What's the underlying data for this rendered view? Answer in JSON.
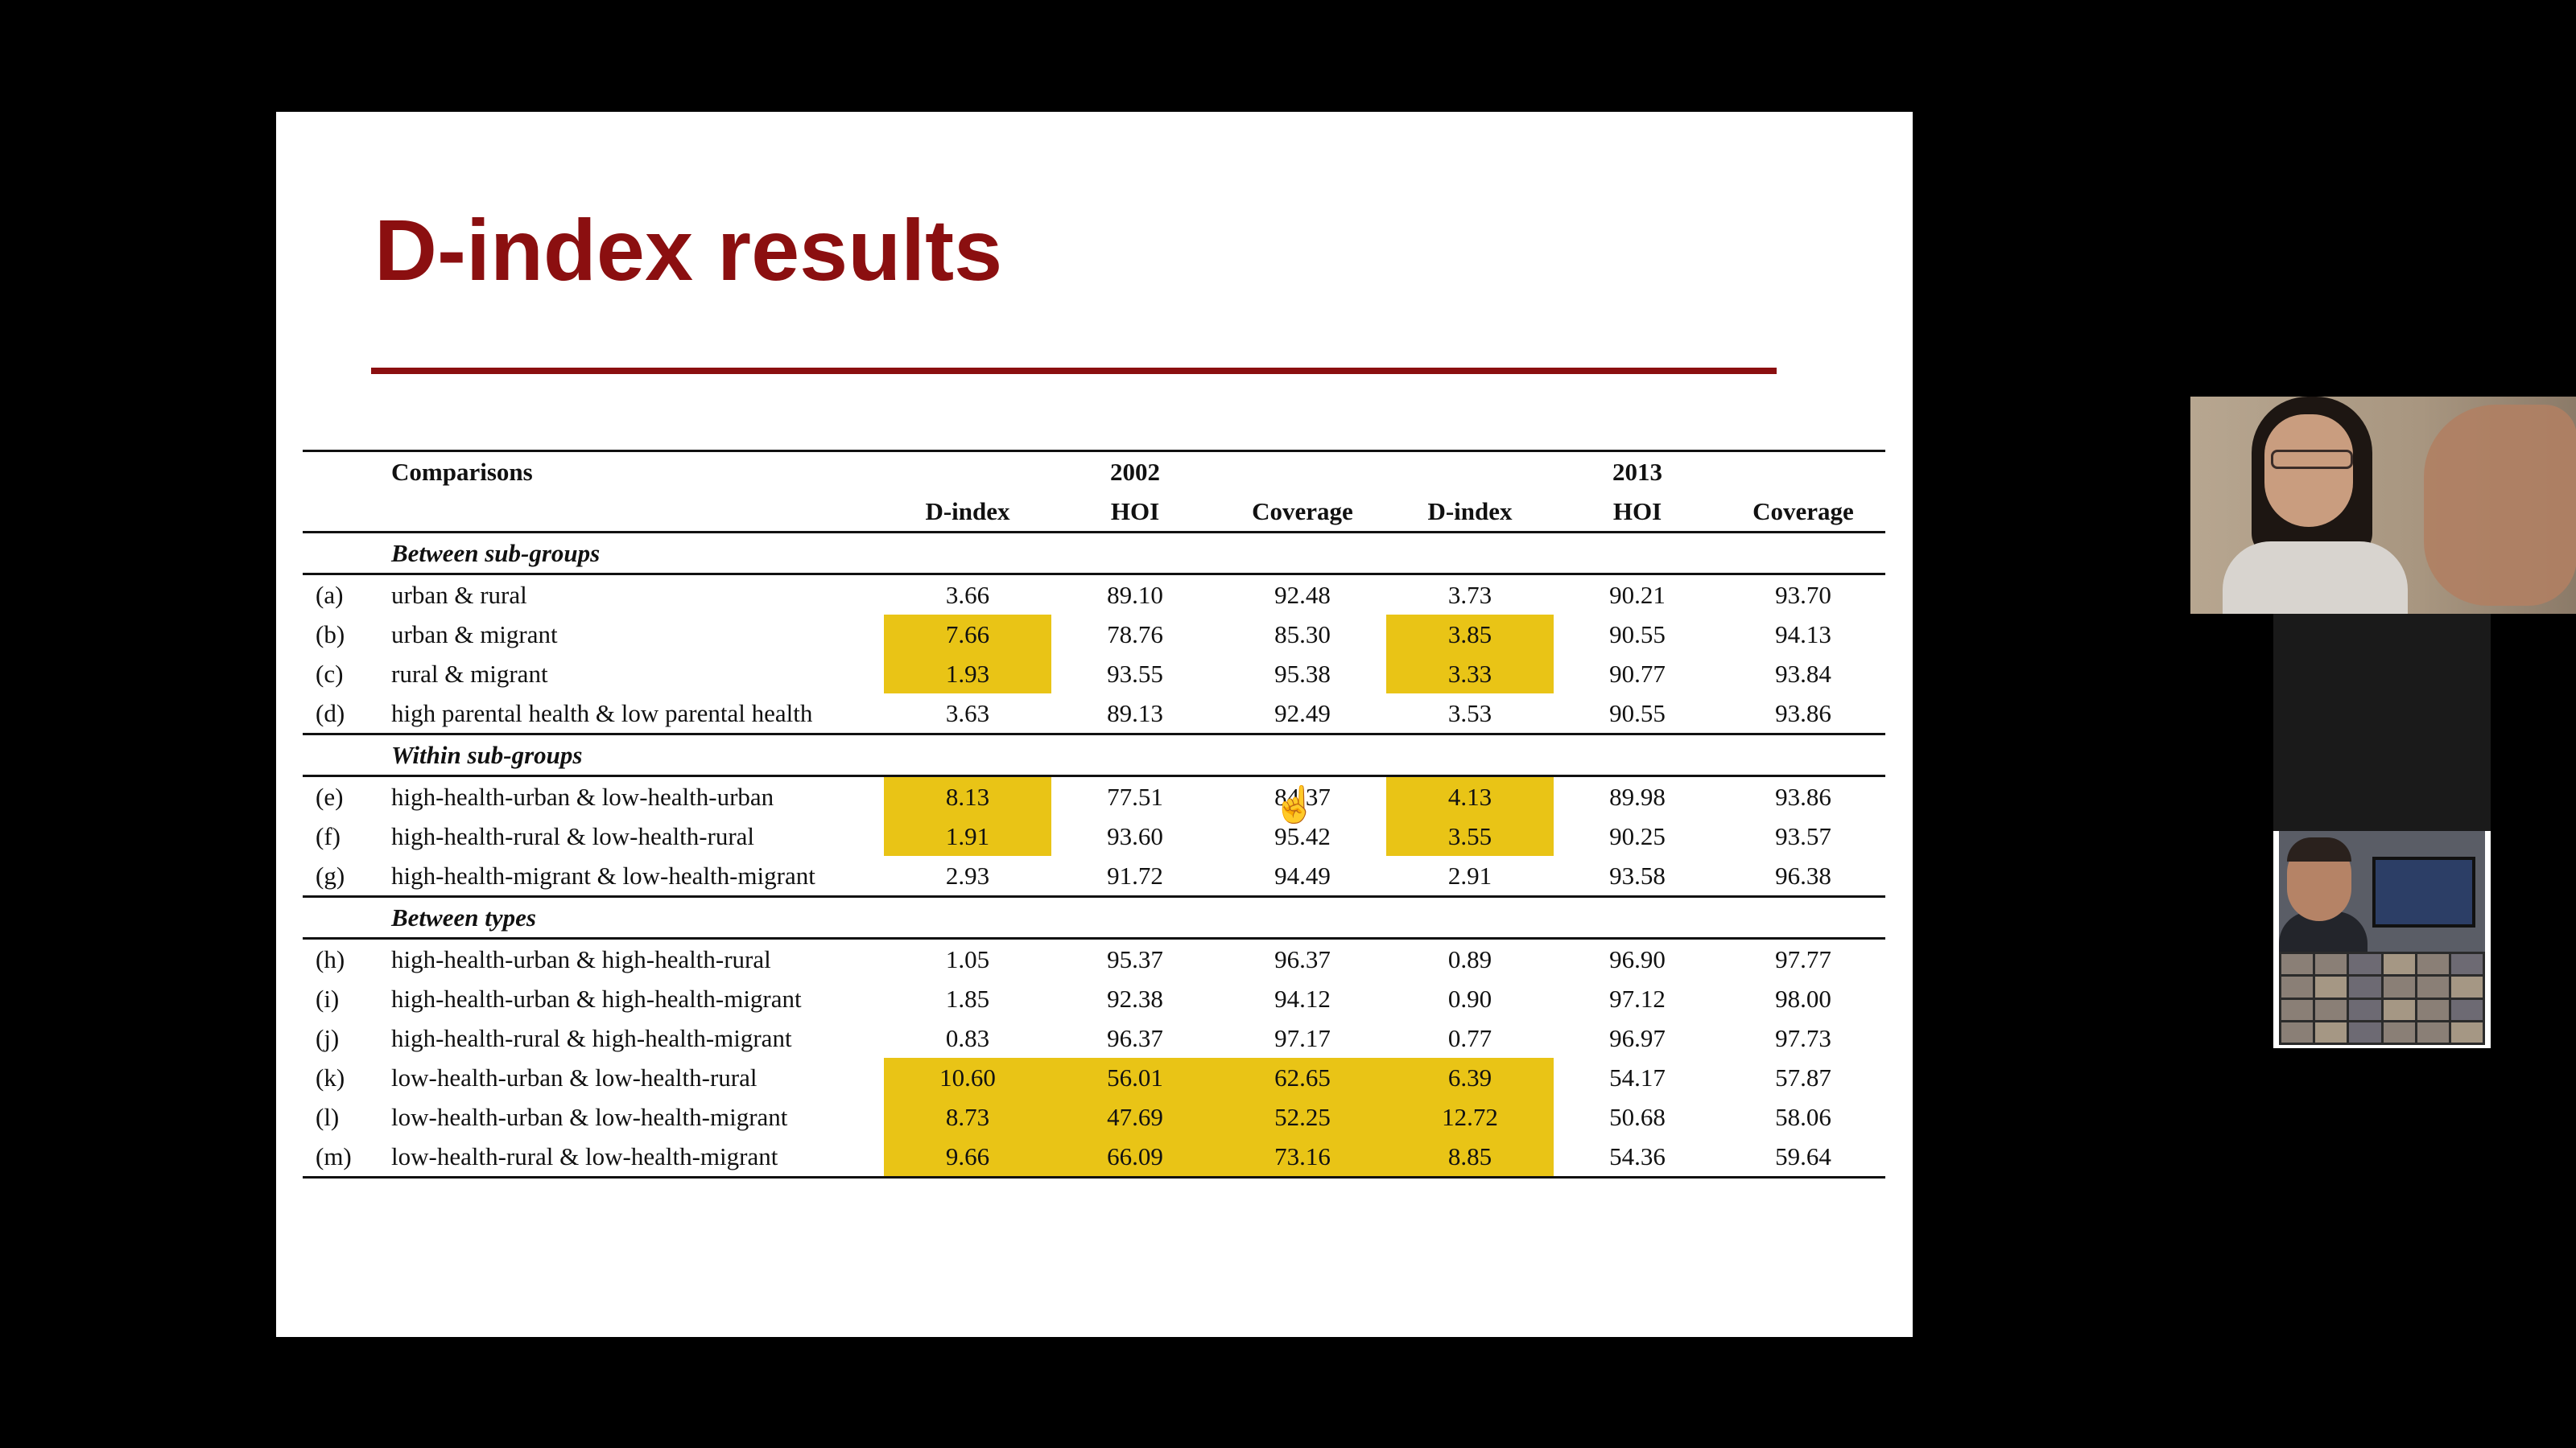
{
  "slide": {
    "title": "D-index results"
  },
  "table": {
    "comparisons_label": "Comparisons",
    "years": [
      "2002",
      "2013"
    ],
    "column_headers": [
      "D-index",
      "HOI",
      "Coverage",
      "D-index",
      "HOI",
      "Coverage"
    ],
    "sections": [
      {
        "title": "Between sub-groups"
      },
      {
        "title": "Within sub-groups"
      },
      {
        "title": "Between types"
      }
    ],
    "rows": [
      {
        "label": "(a)",
        "comparison": "urban & rural",
        "values": [
          "3.66",
          "89.10",
          "92.48",
          "3.73",
          "90.21",
          "93.70"
        ]
      },
      {
        "label": "(b)",
        "comparison": "urban & migrant",
        "values": [
          "7.66",
          "78.76",
          "85.30",
          "3.85",
          "90.55",
          "94.13"
        ]
      },
      {
        "label": "(c)",
        "comparison": "rural & migrant",
        "values": [
          "1.93",
          "93.55",
          "95.38",
          "3.33",
          "90.77",
          "93.84"
        ]
      },
      {
        "label": "(d)",
        "comparison": "high parental health & low parental health",
        "values": [
          "3.63",
          "89.13",
          "92.49",
          "3.53",
          "90.55",
          "93.86"
        ]
      },
      {
        "label": "(e)",
        "comparison": "high-health-urban & low-health-urban",
        "values": [
          "8.13",
          "77.51",
          "84.37",
          "4.13",
          "89.98",
          "93.86"
        ]
      },
      {
        "label": "(f)",
        "comparison": "high-health-rural & low-health-rural",
        "values": [
          "1.91",
          "93.60",
          "95.42",
          "3.55",
          "90.25",
          "93.57"
        ]
      },
      {
        "label": "(g)",
        "comparison": "high-health-migrant & low-health-migrant",
        "values": [
          "2.93",
          "91.72",
          "94.49",
          "2.91",
          "93.58",
          "96.38"
        ]
      },
      {
        "label": "(h)",
        "comparison": "high-health-urban & high-health-rural",
        "values": [
          "1.05",
          "95.37",
          "96.37",
          "0.89",
          "96.90",
          "97.77"
        ]
      },
      {
        "label": "(i)",
        "comparison": "high-health-urban & high-health-migrant",
        "values": [
          "1.85",
          "92.38",
          "94.12",
          "0.90",
          "97.12",
          "98.00"
        ]
      },
      {
        "label": "(j)",
        "comparison": "high-health-rural & high-health-migrant",
        "values": [
          "0.83",
          "96.37",
          "97.17",
          "0.77",
          "96.97",
          "97.73"
        ]
      },
      {
        "label": "(k)",
        "comparison": "low-health-urban & low-health-rural",
        "values": [
          "10.60",
          "56.01",
          "62.65",
          "6.39",
          "54.17",
          "57.87"
        ]
      },
      {
        "label": "(l)",
        "comparison": "low-health-urban & low-health-migrant",
        "values": [
          "8.73",
          "47.69",
          "52.25",
          "12.72",
          "50.68",
          "58.06"
        ]
      },
      {
        "label": "(m)",
        "comparison": "low-health-rural & low-health-migrant",
        "values": [
          "9.66",
          "66.09",
          "73.16",
          "8.85",
          "54.36",
          "59.64"
        ]
      }
    ]
  },
  "colors": {
    "title": "#8b0f10",
    "highlight": "#e9c416",
    "background": "#000000",
    "slide": "#ffffff"
  },
  "icons": {
    "cursor": "hand-pointer-icon"
  }
}
